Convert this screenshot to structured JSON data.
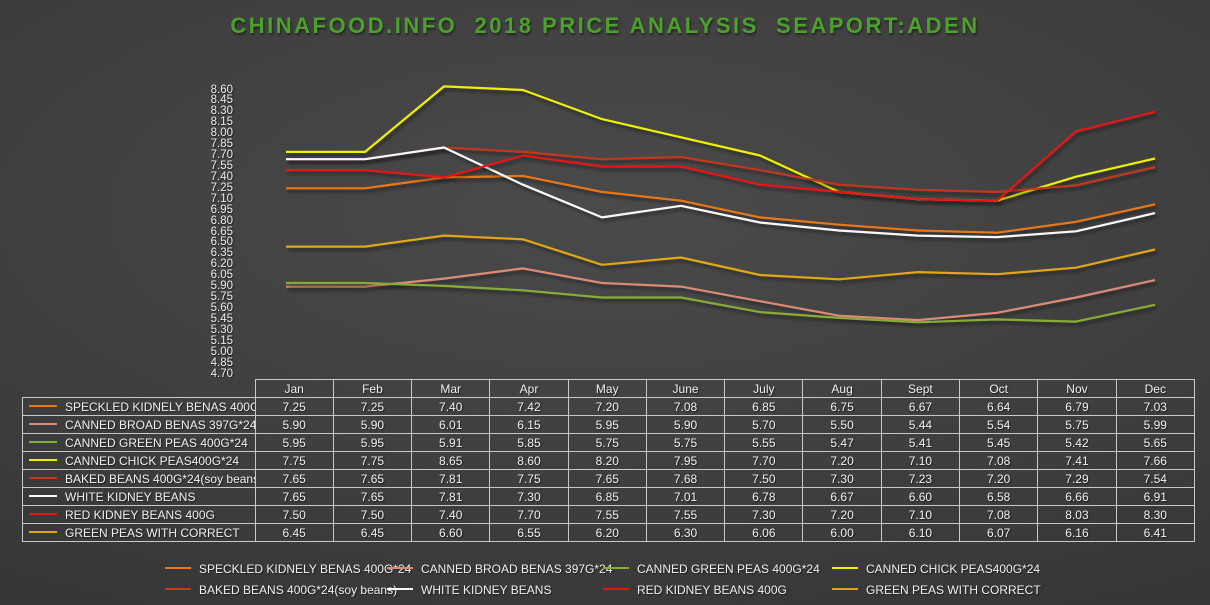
{
  "title": "CHINAFOOD.INFO  2018 PRICE ANALYSIS  SEAPORT:ADEN",
  "title_color": "#4ca12c",
  "chart_data": {
    "type": "line",
    "title": "CHINAFOOD.INFO  2018 PRICE ANALYSIS  SEAPORT:ADEN",
    "categories": [
      "Jan",
      "Feb",
      "Mar",
      "Apr",
      "May",
      "June",
      "July",
      "Aug",
      "Sept",
      "Oct",
      "Nov",
      "Dec"
    ],
    "ylim": [
      4.7,
      8.6
    ],
    "tick_step": 0.15,
    "grid": false,
    "legend_position": "bottom",
    "series": [
      {
        "name": "SPECKLED KIDNELY BENAS 400G*24",
        "color": "#e87818",
        "values": [
          7.25,
          7.25,
          7.4,
          7.42,
          7.2,
          7.08,
          6.85,
          6.75,
          6.67,
          6.64,
          6.79,
          7.03
        ]
      },
      {
        "name": "CANNED BROAD BENAS 397G*24",
        "color": "#db8a76",
        "values": [
          5.9,
          5.9,
          6.01,
          6.15,
          5.95,
          5.9,
          5.7,
          5.5,
          5.44,
          5.54,
          5.75,
          5.99
        ]
      },
      {
        "name": "CANNED GREEN PEAS 400G*24",
        "color": "#86ac36",
        "values": [
          5.95,
          5.95,
          5.91,
          5.85,
          5.75,
          5.75,
          5.55,
          5.47,
          5.41,
          5.45,
          5.42,
          5.65
        ]
      },
      {
        "name": "CANNED CHICK PEAS400G*24",
        "color": "#eff000",
        "values": [
          7.75,
          7.75,
          8.65,
          8.6,
          8.2,
          7.95,
          7.7,
          7.2,
          7.1,
          7.08,
          7.41,
          7.66
        ]
      },
      {
        "name": "BAKED BEANS 400G*24(soy beans)",
        "color": "#c0391e",
        "values": [
          7.65,
          7.65,
          7.81,
          7.75,
          7.65,
          7.68,
          7.5,
          7.3,
          7.23,
          7.2,
          7.29,
          7.54
        ]
      },
      {
        "name": "WHITE KIDNEY BEANS",
        "color": "#f8f8f8",
        "values": [
          7.65,
          7.65,
          7.81,
          7.3,
          6.85,
          7.01,
          6.78,
          6.67,
          6.6,
          6.58,
          6.66,
          6.91
        ]
      },
      {
        "name": "RED KIDNEY BEANS 400G",
        "color": "#e51414",
        "values": [
          7.5,
          7.5,
          7.4,
          7.7,
          7.55,
          7.55,
          7.3,
          7.2,
          7.1,
          7.08,
          8.03,
          8.3
        ]
      },
      {
        "name": "GREEN PEAS WITH CORRECT",
        "color": "#dfa612",
        "values": [
          6.45,
          6.45,
          6.6,
          6.55,
          6.2,
          6.3,
          6.06,
          6.0,
          6.1,
          6.07,
          6.16,
          6.41
        ]
      }
    ]
  }
}
